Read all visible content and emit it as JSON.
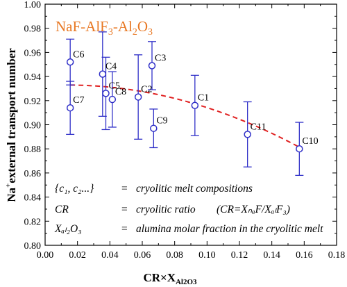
{
  "chart_data": {
    "type": "scatter",
    "title": "NaF-AlF₃-Al₂O₃",
    "title_color": "#e87722",
    "title_parts": [
      {
        "t": "NaF-AlF",
        "sub": false
      },
      {
        "t": "3",
        "sub": true
      },
      {
        "t": "-Al",
        "sub": false
      },
      {
        "t": "2",
        "sub": true
      },
      {
        "t": "O",
        "sub": false
      },
      {
        "t": "3",
        "sub": true
      }
    ],
    "xlabel": "CR×X",
    "xlabel_sub": "Al2O3",
    "ylabel": "external transport number",
    "ylabel_prefix": "Na",
    "ylabel_sup": "+",
    "xlim": [
      0.0,
      0.18
    ],
    "ylim": [
      0.8,
      1.0
    ],
    "xticks": [
      "0.00",
      "0.02",
      "0.04",
      "0.06",
      "0.08",
      "0.10",
      "0.12",
      "0.14",
      "0.16",
      "0.18"
    ],
    "yticks": [
      "0.80",
      "0.82",
      "0.84",
      "0.86",
      "0.88",
      "0.90",
      "0.92",
      "0.94",
      "0.96",
      "0.98",
      "1.00"
    ],
    "point_color": "#3030c8",
    "fit_color": "#e02020",
    "points": [
      {
        "label": "C6",
        "x": 0.0155,
        "y": 0.952,
        "err": 0.019
      },
      {
        "label": "C7",
        "x": 0.0155,
        "y": 0.914,
        "err": 0.022
      },
      {
        "label": "C4",
        "x": 0.0355,
        "y": 0.942,
        "err": 0.035
      },
      {
        "label": "C5",
        "x": 0.0375,
        "y": 0.926,
        "err": 0.03
      },
      {
        "label": "C8",
        "x": 0.0415,
        "y": 0.921,
        "err": 0.023
      },
      {
        "label": "C2",
        "x": 0.0575,
        "y": 0.923,
        "err": 0.035
      },
      {
        "label": "C3",
        "x": 0.066,
        "y": 0.949,
        "err": 0.02
      },
      {
        "label": "C9",
        "x": 0.067,
        "y": 0.897,
        "err": 0.016
      },
      {
        "label": "C1",
        "x": 0.0925,
        "y": 0.916,
        "err": 0.025
      },
      {
        "label": "C11",
        "x": 0.125,
        "y": 0.892,
        "err": 0.027
      },
      {
        "label": "C10",
        "x": 0.157,
        "y": 0.88,
        "err": 0.022
      }
    ],
    "fit": {
      "type": "quadratic-dashed",
      "x_range": [
        0.0155,
        0.1585
      ],
      "coefficients": [
        0.9325,
        0.067,
        -2.5
      ]
    },
    "annotations": [
      {
        "lhs": "{c₁, c₂...}",
        "eq": "=",
        "rhs": "cryolitic melt compositions"
      },
      {
        "lhs": "CR",
        "eq": "=",
        "rhs": "cryolitic ratio",
        "rhs_extra": "(CR=XₙₐF/XₐₗF₃)"
      },
      {
        "lhs": "Xₐₗ₂O₃",
        "eq": "=",
        "rhs": "alumina molar fraction in the cryolitic melt"
      }
    ]
  }
}
